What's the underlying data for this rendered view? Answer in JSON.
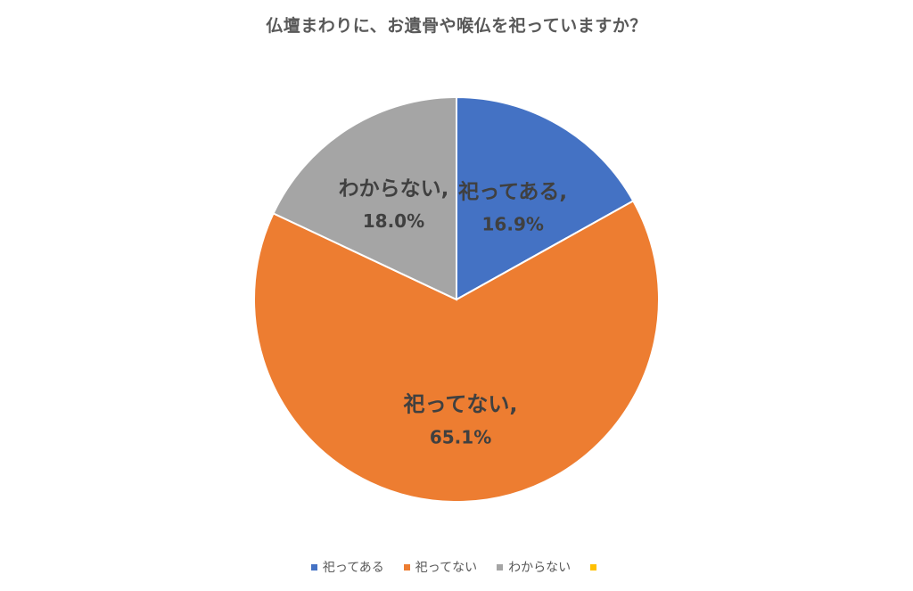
{
  "chart_data": {
    "type": "pie",
    "title": "仏壇まわりに、お遺骨や喉仏を祀っていますか？",
    "categories": [
      "祀ってある",
      "祀ってない",
      "わからない"
    ],
    "values": [
      16.9,
      65.1,
      18.0
    ],
    "value_labels": [
      "16.9%",
      "65.1%",
      "18.0%"
    ],
    "slice_labels": [
      "祀ってある,",
      "祀ってない,",
      "わからない,"
    ],
    "colors": [
      "#4472C4",
      "#ED7D31",
      "#A5A5A5"
    ],
    "legend": {
      "placement": "bottom",
      "entries": [
        {
          "label": "祀ってある",
          "color": "#4472C4"
        },
        {
          "label": "祀ってない",
          "color": "#ED7D31"
        },
        {
          "label": "わからない",
          "color": "#A5A5A5"
        },
        {
          "label": "",
          "color": "#FFC000"
        }
      ]
    }
  }
}
